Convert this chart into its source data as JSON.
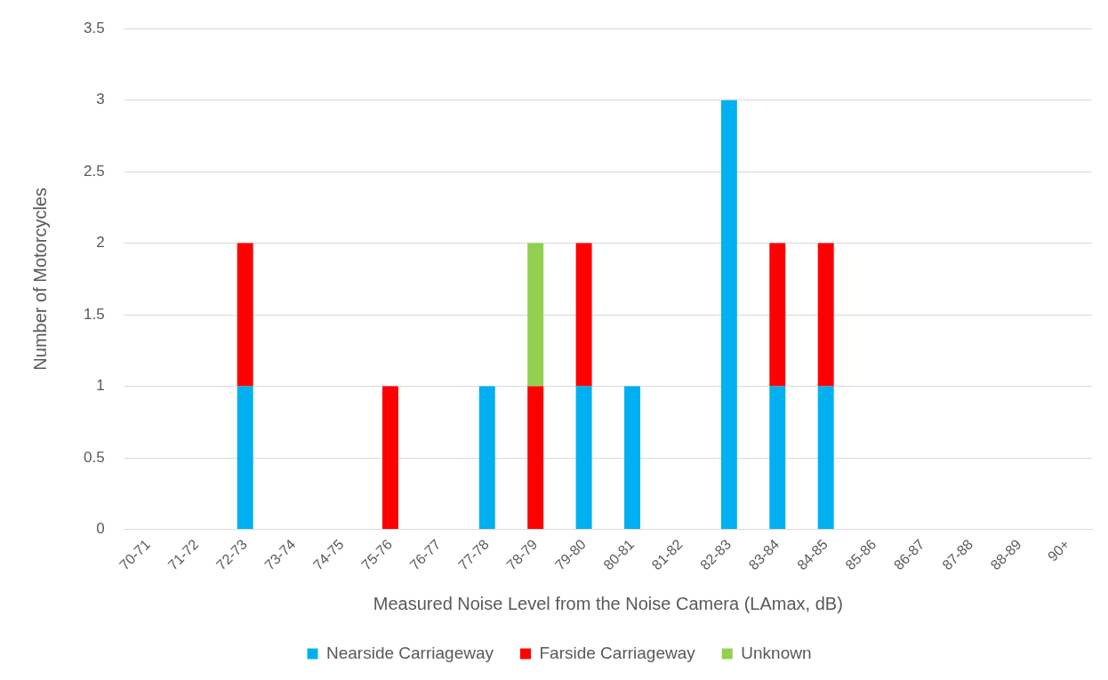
{
  "chart_data": {
    "type": "bar",
    "stacked": true,
    "xlabel": "Measured Noise Level from the Noise Camera (LAmax, dB)",
    "ylabel": "Number of Motorcycles",
    "categories": [
      "70-71",
      "71-72",
      "72-73",
      "73-74",
      "74-75",
      "75-76",
      "76-77",
      "77-78",
      "78-79",
      "79-80",
      "80-81",
      "81-82",
      "82-83",
      "83-84",
      "84-85",
      "85-86",
      "86-87",
      "87-88",
      "88-89",
      "90+"
    ],
    "series": [
      {
        "name": "Nearside Carriageway",
        "color": "#00b0f0",
        "values": [
          0,
          0,
          1,
          0,
          0,
          0,
          0,
          1,
          0,
          1,
          1,
          0,
          3,
          1,
          1,
          0,
          0,
          0,
          0,
          0
        ]
      },
      {
        "name": "Farside Carriageway",
        "color": "#ff0000",
        "values": [
          0,
          0,
          1,
          0,
          0,
          1,
          0,
          0,
          1,
          1,
          0,
          0,
          0,
          1,
          1,
          0,
          0,
          0,
          0,
          0
        ]
      },
      {
        "name": "Unknown",
        "color": "#92d050",
        "values": [
          0,
          0,
          0,
          0,
          0,
          0,
          0,
          0,
          1,
          0,
          0,
          0,
          0,
          0,
          0,
          0,
          0,
          0,
          0,
          0
        ]
      }
    ],
    "ylim": [
      0,
      3.5
    ],
    "yticks": [
      0,
      0.5,
      1,
      1.5,
      2,
      2.5,
      3,
      3.5
    ],
    "grid": "y",
    "legend": "bottom"
  }
}
